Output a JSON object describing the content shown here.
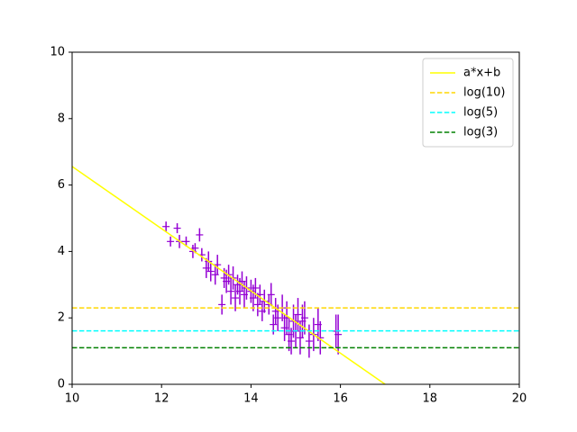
{
  "chart_data": {
    "type": "errorbar",
    "xlim": [
      10,
      20
    ],
    "ylim": [
      0,
      10
    ],
    "xticks": [
      10,
      12,
      14,
      16,
      18,
      20
    ],
    "yticks": [
      0,
      2,
      4,
      6,
      8,
      10
    ],
    "legend": "upper right",
    "points": {
      "color": "#9400d3",
      "x": [
        12.1,
        12.2,
        12.35,
        12.4,
        12.55,
        12.7,
        12.75,
        12.85,
        12.9,
        13.0,
        13.05,
        13.1,
        13.2,
        13.25,
        13.35,
        13.4,
        13.45,
        13.5,
        13.55,
        13.6,
        13.65,
        13.7,
        13.75,
        13.8,
        13.85,
        13.9,
        14.0,
        14.05,
        14.1,
        14.15,
        14.2,
        14.25,
        14.3,
        14.4,
        14.45,
        14.5,
        14.55,
        14.6,
        14.7,
        14.75,
        14.8,
        14.85,
        14.9,
        14.95,
        15.0,
        15.05,
        15.1,
        15.15,
        15.2,
        15.3,
        15.4,
        15.5,
        15.55,
        15.9,
        15.95
      ],
      "values": [
        4.75,
        4.3,
        4.7,
        4.3,
        4.3,
        4.0,
        4.1,
        4.5,
        3.9,
        3.5,
        3.7,
        3.4,
        3.3,
        3.6,
        2.4,
        3.2,
        3.1,
        3.3,
        2.8,
        3.2,
        2.6,
        3.0,
        2.8,
        3.1,
        2.7,
        2.9,
        2.8,
        2.6,
        2.9,
        2.4,
        2.7,
        2.2,
        2.5,
        2.4,
        2.7,
        1.8,
        2.2,
        2.0,
        2.3,
        1.7,
        2.0,
        1.5,
        1.3,
        1.9,
        1.6,
        2.1,
        1.4,
        1.9,
        2.0,
        1.3,
        1.5,
        1.8,
        1.4,
        1.6,
        1.5
      ],
      "errors": [
        0.15,
        0.15,
        0.15,
        0.2,
        0.15,
        0.2,
        0.15,
        0.2,
        0.2,
        0.3,
        0.3,
        0.3,
        0.3,
        0.3,
        0.3,
        0.3,
        0.35,
        0.3,
        0.4,
        0.35,
        0.4,
        0.3,
        0.4,
        0.3,
        0.4,
        0.35,
        0.35,
        0.4,
        0.3,
        0.35,
        0.3,
        0.3,
        0.35,
        0.3,
        0.35,
        0.3,
        0.4,
        0.4,
        0.4,
        0.4,
        0.5,
        0.5,
        0.4,
        0.5,
        0.5,
        0.5,
        0.5,
        0.5,
        0.5,
        0.5,
        0.5,
        0.5,
        0.5,
        0.5,
        0.6
      ]
    },
    "series": [
      {
        "name": "a*x+b",
        "color": "#ffff00",
        "style": "solid",
        "x": [
          10,
          17
        ],
        "values": [
          6.56,
          0
        ]
      },
      {
        "name": "log(10)",
        "color": "#ffd700",
        "style": "dashed",
        "x": [
          10,
          20
        ],
        "values": [
          2.3,
          2.3
        ]
      },
      {
        "name": "log(5)",
        "color": "#00ffff",
        "style": "dashed",
        "x": [
          10,
          20
        ],
        "values": [
          1.61,
          1.61
        ]
      },
      {
        "name": "log(3)",
        "color": "#008000",
        "style": "dashed",
        "x": [
          10,
          20
        ],
        "values": [
          1.1,
          1.1
        ]
      }
    ]
  }
}
